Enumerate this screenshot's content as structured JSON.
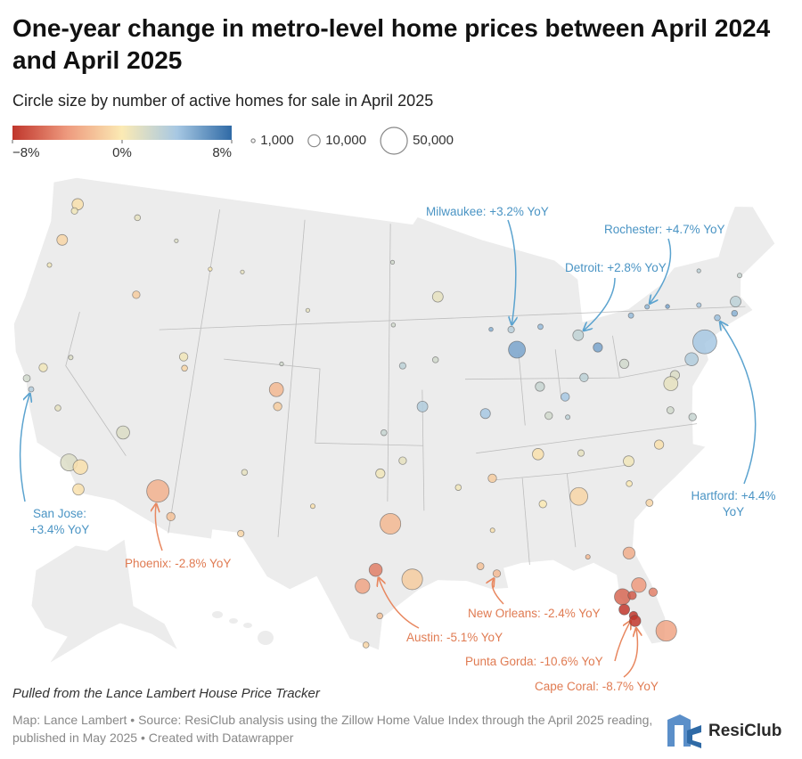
{
  "title": "One-year change in metro-level home prices between April 2024 and April 2025",
  "subtitle": "Circle size by number of active homes for sale in April 2025",
  "color_scale": {
    "colors": [
      "#c0362c",
      "#ee9a7e",
      "#fbeab4",
      "#a7c8e3",
      "#2f6aa6"
    ],
    "ticks": [
      {
        "value": -8,
        "label": "−8%"
      },
      {
        "value": 0,
        "label": "0%"
      },
      {
        "value": 8,
        "label": "8%"
      }
    ]
  },
  "size_legend": {
    "ticks": [
      {
        "value": 1000,
        "label": "1,000"
      },
      {
        "value": 10000,
        "label": "10,000"
      },
      {
        "value": 50000,
        "label": "50,000"
      }
    ]
  },
  "annotations": [
    {
      "label": "Milwaukee: +3.2% YoY",
      "value": 3.2,
      "lon": -87.9,
      "lat": 43.0,
      "homes": 3000
    },
    {
      "label": "Rochester: +4.7% YoY",
      "value": 4.7,
      "lon": -77.6,
      "lat": 43.2,
      "homes": 1500
    },
    {
      "label": "Detroit: +2.8% YoY",
      "value": 2.8,
      "lon": -83.0,
      "lat": 42.3,
      "homes": 8000
    },
    {
      "label": "San Jose: +3.4% YoY",
      "value": 3.4,
      "lon": -121.9,
      "lat": 37.3,
      "homes": 2000
    },
    {
      "label": "Hartford: +4.4% YoY",
      "value": 4.4,
      "lon": -72.7,
      "lat": 41.8,
      "homes": 2500
    },
    {
      "label": "Phoenix: -2.8% YoY",
      "value": -2.8,
      "lon": -112.1,
      "lat": 33.45,
      "homes": 35000
    },
    {
      "label": "Austin: -5.1% YoY",
      "value": -5.1,
      "lon": -97.7,
      "lat": 30.3,
      "homes": 12000
    },
    {
      "label": "New Orleans: -2.4% YoY",
      "value": -2.4,
      "lon": -90.1,
      "lat": 29.95,
      "homes": 4000
    },
    {
      "label": "Punta Gorda: -10.6% YoY",
      "value": -10.6,
      "lon": -82.0,
      "lat": 26.9,
      "homes": 5000
    },
    {
      "label": "Cape Coral: -8.7% YoY",
      "value": -8.7,
      "lon": -81.95,
      "lat": 26.6,
      "homes": 9000
    }
  ],
  "points": {
    "lon": [
      -122.3,
      -122.4,
      -117.4,
      -122.7,
      -123.1,
      -116.2,
      -121.5,
      -122.4,
      -119.8,
      -118.2,
      -117.4,
      -117.2,
      -115.1,
      -119.8,
      -111.9,
      -111.7,
      -111.0,
      -106.6,
      -106.4,
      -105.0,
      -104.8,
      -108.5,
      -104.8,
      -96.0,
      -94.6,
      -97.3,
      -97.5,
      -96.0,
      -96.8,
      -95.4,
      -98.5,
      -97.4,
      -98.2,
      -101.9,
      -92.3,
      -90.0,
      -86.8,
      -84.4,
      -86.8,
      -90.2,
      -91.1,
      -80.8,
      -78.6,
      -81.0,
      -79.9,
      -81.7,
      -81.4,
      -82.5,
      -82.5,
      -80.2,
      -80.6,
      -81.9,
      -84.3,
      -83.9,
      -85.8,
      -84.5,
      -84.5,
      -83.0,
      -81.7,
      -80.0,
      -86.2,
      -87.6,
      -85.7,
      -89.4,
      -93.3,
      -93.6,
      -90.2,
      -78.9,
      -76.1,
      -73.8,
      -74.0,
      -75.2,
      -76.6,
      -77.0,
      -77.4,
      -76.0,
      -71.1,
      -71.4,
      -70.3,
      -73.2,
      -96.8,
      -96.7,
      -103.2,
      -114.0,
      -111.0
    ],
    "lat": [
      47.6,
      47.2,
      47.7,
      45.5,
      44.0,
      43.6,
      38.6,
      37.8,
      36.7,
      34.0,
      33.9,
      32.7,
      36.2,
      39.5,
      40.8,
      40.2,
      32.2,
      35.1,
      31.8,
      39.7,
      38.8,
      45.8,
      41.1,
      41.3,
      39.1,
      37.7,
      35.5,
      36.2,
      32.8,
      29.8,
      29.4,
      27.8,
      26.2,
      33.6,
      34.7,
      35.1,
      36.2,
      33.7,
      33.5,
      32.3,
      30.4,
      35.2,
      35.8,
      34.0,
      32.8,
      30.3,
      28.5,
      28.0,
      27.3,
      25.8,
      28.0,
      28.0,
      30.4,
      36.0,
      38.2,
      38.0,
      39.1,
      40.0,
      41.5,
      40.4,
      39.8,
      41.9,
      43.0,
      43.1,
      45.0,
      41.6,
      38.6,
      42.9,
      43.0,
      42.7,
      40.7,
      39.95,
      39.3,
      38.9,
      37.5,
      36.9,
      42.4,
      41.8,
      43.7,
      44.5,
      46.9,
      43.5,
      44.1,
      46.9,
      45.7
    ],
    "change": [
      -0.5,
      0.5,
      1.0,
      -1.0,
      0.5,
      -1.5,
      0.5,
      2.0,
      1.0,
      1.5,
      -0.5,
      -0.5,
      1.5,
      1.5,
      0.5,
      -1.0,
      -2.0,
      1.0,
      -1.0,
      -2.5,
      -1.5,
      1.0,
      2.0,
      3.0,
      3.5,
      2.5,
      0.5,
      1.0,
      -2.5,
      -1.5,
      -3.5,
      -2.0,
      -1.0,
      -0.5,
      0.5,
      -1.5,
      -0.5,
      -1.0,
      0.0,
      -0.5,
      -2.0,
      0.5,
      -0.5,
      0.0,
      -1.0,
      -3.0,
      -4.0,
      -6.0,
      -9.0,
      -3.5,
      -5.0,
      -6.5,
      -2.5,
      1.0,
      2.0,
      3.0,
      4.0,
      3.0,
      5.5,
      2.0,
      2.5,
      5.5,
      4.5,
      5.0,
      1.0,
      2.0,
      4.0,
      4.5,
      5.5,
      4.0,
      4.0,
      3.5,
      1.5,
      1.0,
      2.0,
      2.5,
      3.0,
      5.0,
      2.5,
      3.0,
      2.0,
      2.0,
      1.0,
      1.5,
      0.0
    ],
    "homes": [
      9000,
      3000,
      2500,
      8000,
      1500,
      4000,
      5000,
      3500,
      2500,
      20000,
      15000,
      9000,
      12000,
      1500,
      5000,
      2500,
      5000,
      2500,
      3000,
      14000,
      5000,
      1000,
      700,
      3000,
      8000,
      2500,
      6000,
      4000,
      30000,
      30000,
      15000,
      2500,
      2500,
      1500,
      2500,
      5000,
      9000,
      22000,
      4000,
      1500,
      3500,
      8000,
      6000,
      2500,
      3500,
      10000,
      15000,
      18000,
      8000,
      30000,
      5000,
      5000,
      1500,
      3000,
      4000,
      1500,
      5000,
      5000,
      6000,
      6000,
      6000,
      20000,
      2000,
      1200,
      8000,
      2500,
      7000,
      2000,
      1200,
      1500,
      40000,
      12000,
      6000,
      14000,
      3500,
      4000,
      8000,
      2500,
      1500,
      500,
      700,
      1200,
      600,
      600,
      500
    ]
  },
  "note": "Pulled from the Lance Lambert House Price Tracker",
  "source": "Map: Lance Lambert • Source: ResiClub analysis using the Zillow Home Value Index through the April 2025 reading, published in May 2025 • Created with Datawrapper",
  "brand": "ResiClub"
}
